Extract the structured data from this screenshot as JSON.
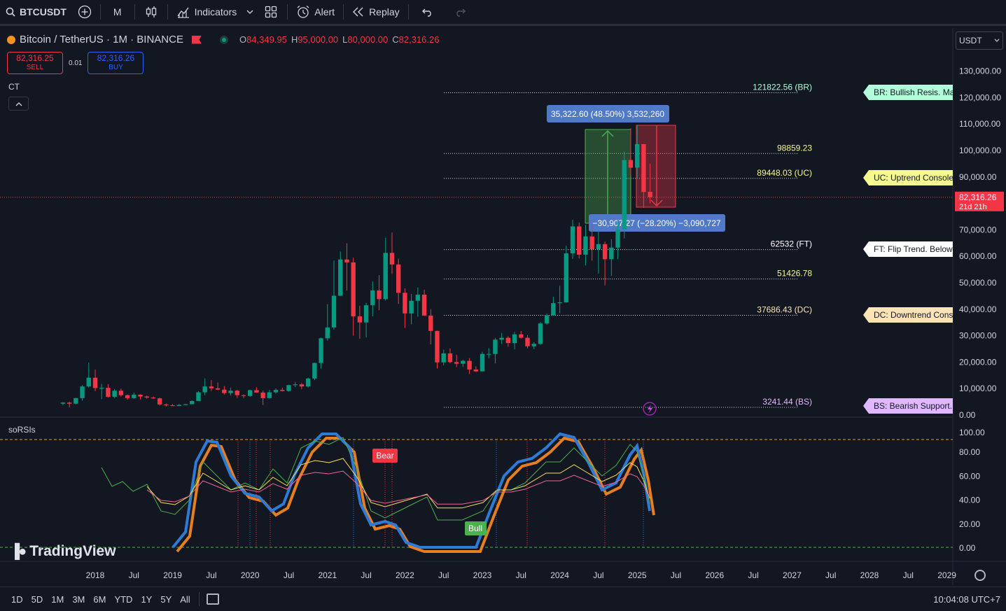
{
  "toolbar": {
    "symbol": "BTCUSDT",
    "interval": "M",
    "indicators_label": "Indicators",
    "alert_label": "Alert",
    "replay_label": "Replay"
  },
  "legend": {
    "pair": "Bitcoin / TetherUS · 1M · BINANCE",
    "open_label": "O",
    "open": "84,349.95",
    "high_label": "H",
    "high": "95,000.00",
    "low_label": "L",
    "low": "80,000.00",
    "close_label": "C",
    "close": "82,316.26"
  },
  "trade": {
    "sell_price": "82,316.25",
    "sell_label": "SELL",
    "spread": "0.01",
    "buy_price": "82,316.26",
    "buy_label": "BUY"
  },
  "ct_label": "CT",
  "currency_select": "USDT",
  "price_axis": [
    "130,000.00",
    "120,000.00",
    "110,000.00",
    "100,000.00",
    "90,000.00",
    "70,000.00",
    "60,000.00",
    "50,000.00",
    "40,000.00",
    "30,000.00",
    "20,000.00",
    "10,000.00",
    "0.00"
  ],
  "current_price": {
    "price": "82,316.26",
    "countdown": "21d 21h"
  },
  "levels": [
    {
      "text": "121822.56 (BR)",
      "color": "#b2fcd9"
    },
    {
      "text": "98859.23",
      "color": "#f6f98f"
    },
    {
      "text": "89448.03 (UC)",
      "color": "#f6f98f"
    },
    {
      "text": "62532 (FT)",
      "color": "#ffffff"
    },
    {
      "text": "51426.78",
      "color": "#f6f98f"
    },
    {
      "text": "37686.43 (DC)",
      "color": "#fde4b6"
    },
    {
      "text": "3241.44 (BS)",
      "color": "#e0b8ff"
    }
  ],
  "right_tags": [
    {
      "text": "BR: Bullish Resis. Mai",
      "bg": "#b2fcd9"
    },
    {
      "text": "UC: Uptrend Console",
      "bg": "#f6f98f"
    },
    {
      "text": "FT: Flip Trend. Below",
      "bg": "#ffffff"
    },
    {
      "text": "DC: Downtrend Conso",
      "bg": "#fde4b6"
    },
    {
      "text": "BS: Bearish Support.",
      "bg": "#e0b8ff"
    }
  ],
  "measure": {
    "up_text": "35,322.60 (48.50%) 3,532,260",
    "down_text": "−30,907.27 (−28.20%) −3,090,727"
  },
  "indicator": {
    "name": "soRSIs",
    "bear_label": "Bear",
    "bull_label": "Bull",
    "axis": [
      "100.00",
      "80.00",
      "60.00",
      "40.00",
      "20.00",
      "0.00"
    ]
  },
  "time_axis": [
    "2018",
    "Jul",
    "2019",
    "Jul",
    "2020",
    "Jul",
    "2021",
    "Jul",
    "2022",
    "Jul",
    "2023",
    "Jul",
    "2024",
    "Jul",
    "2025",
    "Jul",
    "2026",
    "Jul",
    "2027",
    "Jul",
    "2028",
    "Jul",
    "2029"
  ],
  "watermark": "TradingView",
  "ranges": [
    "1D",
    "5D",
    "1M",
    "3M",
    "6M",
    "YTD",
    "1Y",
    "5Y",
    "All"
  ],
  "clock": "10:04:08 UTC+7",
  "chart_data": {
    "type": "candlestick",
    "interval": "1M",
    "ylim": [
      0,
      135000
    ],
    "ohlc_monthly_approx": [
      {
        "x": "2017-08",
        "o": 4300,
        "h": 4900,
        "l": 3800,
        "c": 4700
      },
      {
        "x": "2017-09",
        "o": 4700,
        "h": 5000,
        "l": 2900,
        "c": 4300
      },
      {
        "x": "2017-10",
        "o": 4300,
        "h": 6500,
        "l": 4100,
        "c": 6400
      },
      {
        "x": "2017-11",
        "o": 6400,
        "h": 11300,
        "l": 5400,
        "c": 10800
      },
      {
        "x": "2017-12",
        "o": 10800,
        "h": 19800,
        "l": 10400,
        "c": 14100
      },
      {
        "x": "2018-01",
        "o": 14100,
        "h": 17200,
        "l": 9000,
        "c": 10200
      },
      {
        "x": "2018-02",
        "o": 10200,
        "h": 11800,
        "l": 6000,
        "c": 10300
      },
      {
        "x": "2018-03",
        "o": 10300,
        "h": 11700,
        "l": 6600,
        "c": 6900
      },
      {
        "x": "2018-04",
        "o": 6900,
        "h": 9800,
        "l": 6400,
        "c": 9200
      },
      {
        "x": "2018-05",
        "o": 9200,
        "h": 10000,
        "l": 7000,
        "c": 7500
      },
      {
        "x": "2018-06",
        "o": 7500,
        "h": 7700,
        "l": 5800,
        "c": 6400
      },
      {
        "x": "2018-07",
        "o": 6400,
        "h": 8500,
        "l": 6100,
        "c": 7700
      },
      {
        "x": "2018-08",
        "o": 7700,
        "h": 7800,
        "l": 5900,
        "c": 7000
      },
      {
        "x": "2018-09",
        "o": 7000,
        "h": 7400,
        "l": 6100,
        "c": 6600
      },
      {
        "x": "2018-10",
        "o": 6600,
        "h": 7000,
        "l": 6100,
        "c": 6300
      },
      {
        "x": "2018-11",
        "o": 6300,
        "h": 6600,
        "l": 3600,
        "c": 4000
      },
      {
        "x": "2018-12",
        "o": 4000,
        "h": 4400,
        "l": 3200,
        "c": 3700
      },
      {
        "x": "2019-01",
        "o": 3700,
        "h": 4100,
        "l": 3400,
        "c": 3400
      },
      {
        "x": "2019-02",
        "o": 3400,
        "h": 4200,
        "l": 3400,
        "c": 3800
      },
      {
        "x": "2019-03",
        "o": 3800,
        "h": 4100,
        "l": 3700,
        "c": 4100
      },
      {
        "x": "2019-04",
        "o": 4100,
        "h": 5600,
        "l": 4100,
        "c": 5300
      },
      {
        "x": "2019-05",
        "o": 5300,
        "h": 9000,
        "l": 5300,
        "c": 8600
      },
      {
        "x": "2019-06",
        "o": 8600,
        "h": 13900,
        "l": 7500,
        "c": 10800
      },
      {
        "x": "2019-07",
        "o": 10800,
        "h": 13200,
        "l": 9100,
        "c": 10100
      },
      {
        "x": "2019-08",
        "o": 10100,
        "h": 12300,
        "l": 9400,
        "c": 9600
      },
      {
        "x": "2019-09",
        "o": 9600,
        "h": 10900,
        "l": 7700,
        "c": 8300
      },
      {
        "x": "2019-10",
        "o": 8300,
        "h": 10400,
        "l": 7300,
        "c": 9200
      },
      {
        "x": "2019-11",
        "o": 9200,
        "h": 9500,
        "l": 6500,
        "c": 7500
      },
      {
        "x": "2019-12",
        "o": 7500,
        "h": 7800,
        "l": 6400,
        "c": 7200
      },
      {
        "x": "2020-01",
        "o": 7200,
        "h": 9600,
        "l": 6900,
        "c": 9400
      },
      {
        "x": "2020-02",
        "o": 9400,
        "h": 10500,
        "l": 8500,
        "c": 8500
      },
      {
        "x": "2020-03",
        "o": 8500,
        "h": 9200,
        "l": 3800,
        "c": 6400
      },
      {
        "x": "2020-04",
        "o": 6400,
        "h": 9500,
        "l": 6200,
        "c": 8600
      },
      {
        "x": "2020-05",
        "o": 8600,
        "h": 10100,
        "l": 8100,
        "c": 9500
      },
      {
        "x": "2020-06",
        "o": 9500,
        "h": 10400,
        "l": 8900,
        "c": 9100
      },
      {
        "x": "2020-07",
        "o": 9100,
        "h": 11400,
        "l": 8900,
        "c": 11300
      },
      {
        "x": "2020-08",
        "o": 11300,
        "h": 12500,
        "l": 10600,
        "c": 11600
      },
      {
        "x": "2020-09",
        "o": 11600,
        "h": 12100,
        "l": 9800,
        "c": 10800
      },
      {
        "x": "2020-10",
        "o": 10800,
        "h": 14100,
        "l": 10400,
        "c": 13800
      },
      {
        "x": "2020-11",
        "o": 13800,
        "h": 19800,
        "l": 13200,
        "c": 19700
      },
      {
        "x": "2020-12",
        "o": 19700,
        "h": 29300,
        "l": 17600,
        "c": 29000
      },
      {
        "x": "2021-01",
        "o": 29000,
        "h": 41900,
        "l": 28100,
        "c": 33100
      },
      {
        "x": "2021-02",
        "o": 33100,
        "h": 58400,
        "l": 32300,
        "c": 45100
      },
      {
        "x": "2021-03",
        "o": 45100,
        "h": 61800,
        "l": 45000,
        "c": 58800
      },
      {
        "x": "2021-04",
        "o": 58800,
        "h": 64900,
        "l": 47000,
        "c": 57700
      },
      {
        "x": "2021-05",
        "o": 57700,
        "h": 59500,
        "l": 30000,
        "c": 37300
      },
      {
        "x": "2021-06",
        "o": 37300,
        "h": 41300,
        "l": 28800,
        "c": 35000
      },
      {
        "x": "2021-07",
        "o": 35000,
        "h": 42400,
        "l": 29300,
        "c": 41500
      },
      {
        "x": "2021-08",
        "o": 41500,
        "h": 50500,
        "l": 37300,
        "c": 47100
      },
      {
        "x": "2021-09",
        "o": 47100,
        "h": 52900,
        "l": 39600,
        "c": 43800
      },
      {
        "x": "2021-10",
        "o": 43800,
        "h": 67000,
        "l": 43300,
        "c": 61300
      },
      {
        "x": "2021-11",
        "o": 61300,
        "h": 69000,
        "l": 53300,
        "c": 56900
      },
      {
        "x": "2021-12",
        "o": 56900,
        "h": 59100,
        "l": 42000,
        "c": 46200
      },
      {
        "x": "2022-01",
        "o": 46200,
        "h": 47900,
        "l": 32900,
        "c": 38400
      },
      {
        "x": "2022-02",
        "o": 38400,
        "h": 45800,
        "l": 34300,
        "c": 43200
      },
      {
        "x": "2022-03",
        "o": 43200,
        "h": 48200,
        "l": 37200,
        "c": 45500
      },
      {
        "x": "2022-04",
        "o": 45500,
        "h": 47400,
        "l": 37600,
        "c": 37600
      },
      {
        "x": "2022-05",
        "o": 37600,
        "h": 40000,
        "l": 26700,
        "c": 31800
      },
      {
        "x": "2022-06",
        "o": 31800,
        "h": 31900,
        "l": 17600,
        "c": 19900
      },
      {
        "x": "2022-07",
        "o": 19900,
        "h": 24700,
        "l": 18800,
        "c": 23300
      },
      {
        "x": "2022-08",
        "o": 23300,
        "h": 25200,
        "l": 19600,
        "c": 20000
      },
      {
        "x": "2022-09",
        "o": 20000,
        "h": 22800,
        "l": 18100,
        "c": 19400
      },
      {
        "x": "2022-10",
        "o": 19400,
        "h": 20900,
        "l": 18200,
        "c": 20500
      },
      {
        "x": "2022-11",
        "o": 20500,
        "h": 21500,
        "l": 15500,
        "c": 17200
      },
      {
        "x": "2022-12",
        "o": 17200,
        "h": 18400,
        "l": 16300,
        "c": 16500
      },
      {
        "x": "2023-01",
        "o": 16500,
        "h": 23900,
        "l": 16500,
        "c": 23100
      },
      {
        "x": "2023-02",
        "o": 23100,
        "h": 25200,
        "l": 21400,
        "c": 23100
      },
      {
        "x": "2023-03",
        "o": 23100,
        "h": 29200,
        "l": 19500,
        "c": 28500
      },
      {
        "x": "2023-04",
        "o": 28500,
        "h": 31000,
        "l": 26900,
        "c": 29200
      },
      {
        "x": "2023-05",
        "o": 29200,
        "h": 29800,
        "l": 25800,
        "c": 27200
      },
      {
        "x": "2023-06",
        "o": 27200,
        "h": 31400,
        "l": 24800,
        "c": 30500
      },
      {
        "x": "2023-07",
        "o": 30500,
        "h": 31800,
        "l": 28900,
        "c": 29200
      },
      {
        "x": "2023-08",
        "o": 29200,
        "h": 30200,
        "l": 25200,
        "c": 26000
      },
      {
        "x": "2023-09",
        "o": 26000,
        "h": 27500,
        "l": 24900,
        "c": 26900
      },
      {
        "x": "2023-10",
        "o": 26900,
        "h": 35200,
        "l": 26500,
        "c": 34600
      },
      {
        "x": "2023-11",
        "o": 34600,
        "h": 38400,
        "l": 34100,
        "c": 37700
      },
      {
        "x": "2023-12",
        "o": 37700,
        "h": 44700,
        "l": 37600,
        "c": 42300
      },
      {
        "x": "2024-01",
        "o": 42300,
        "h": 48900,
        "l": 38500,
        "c": 42600
      },
      {
        "x": "2024-02",
        "o": 42600,
        "h": 64000,
        "l": 42500,
        "c": 61100
      },
      {
        "x": "2024-03",
        "o": 61100,
        "h": 73800,
        "l": 59000,
        "c": 71300
      },
      {
        "x": "2024-04",
        "o": 71300,
        "h": 72800,
        "l": 59200,
        "c": 60600
      },
      {
        "x": "2024-05",
        "o": 60600,
        "h": 71900,
        "l": 56500,
        "c": 67500
      },
      {
        "x": "2024-06",
        "o": 67500,
        "h": 72000,
        "l": 58400,
        "c": 62700
      },
      {
        "x": "2024-07",
        "o": 62700,
        "h": 70000,
        "l": 53500,
        "c": 64600
      },
      {
        "x": "2024-08",
        "o": 64600,
        "h": 65600,
        "l": 49000,
        "c": 58900
      },
      {
        "x": "2024-09",
        "o": 58900,
        "h": 66500,
        "l": 52600,
        "c": 63300
      },
      {
        "x": "2024-10",
        "o": 63300,
        "h": 73600,
        "l": 58900,
        "c": 70200
      },
      {
        "x": "2024-11",
        "o": 70200,
        "h": 99600,
        "l": 66800,
        "c": 96400
      },
      {
        "x": "2024-12",
        "o": 96400,
        "h": 108400,
        "l": 90500,
        "c": 93500
      },
      {
        "x": "2025-01",
        "o": 93500,
        "h": 109600,
        "l": 89300,
        "c": 102400
      },
      {
        "x": "2025-02",
        "o": 102400,
        "h": 102500,
        "l": 78300,
        "c": 84300
      },
      {
        "x": "2025-03",
        "o": 84349.95,
        "h": 95000,
        "l": 80000,
        "c": 82316.26
      }
    ]
  }
}
